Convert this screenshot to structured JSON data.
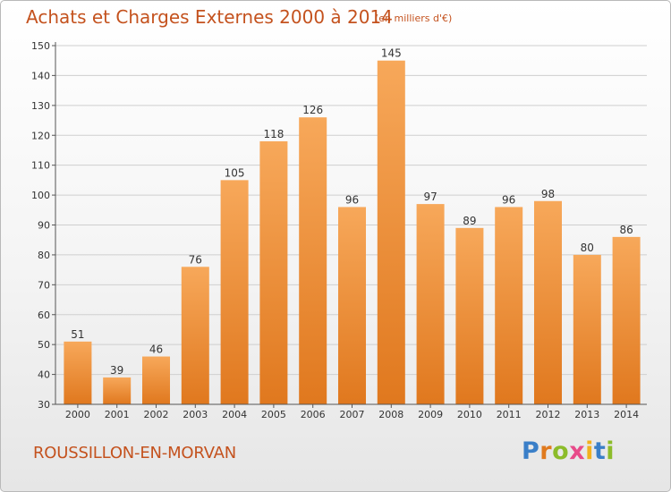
{
  "header": {
    "title": "Achats et Charges Externes 2000 à 2014",
    "unit": "(en milliers d'€)"
  },
  "footer": {
    "commune": "ROUSSILLON-EN-MORVAN",
    "logo_letters": [
      "P",
      "r",
      "o",
      "x",
      "i",
      "t",
      "i"
    ]
  },
  "colors": {
    "bar_light": "#f7a85a",
    "bar_dark": "#e0781e",
    "text_accent": "#c4521e",
    "grid": "#cfcfcf",
    "axis": "#555555"
  },
  "chart_data": {
    "type": "bar",
    "title": "Achats et Charges Externes 2000 à 2014",
    "subtitle": "(en milliers d'€)",
    "xlabel": "",
    "ylabel": "",
    "categories": [
      "2000",
      "2001",
      "2002",
      "2003",
      "2004",
      "2005",
      "2006",
      "2007",
      "2008",
      "2009",
      "2010",
      "2011",
      "2012",
      "2013",
      "2014"
    ],
    "values": [
      51,
      39,
      46,
      76,
      105,
      118,
      126,
      96,
      145,
      97,
      89,
      96,
      98,
      80,
      86
    ],
    "ylim": [
      30,
      150
    ],
    "yticks": [
      30,
      40,
      50,
      60,
      70,
      80,
      90,
      100,
      110,
      120,
      130,
      140,
      150
    ],
    "grid": true,
    "legend": "none"
  }
}
